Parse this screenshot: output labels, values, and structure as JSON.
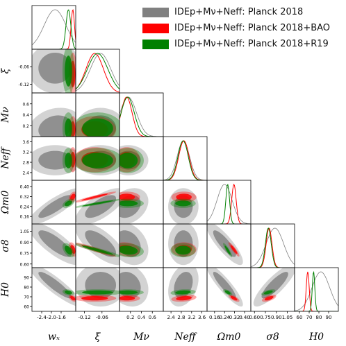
{
  "legend": [
    {
      "label": "IDEp+Mν+Neff: Planck 2018",
      "color": "#808080"
    },
    {
      "label": "IDEp+Mν+Neff: Planck 2018+BAO",
      "color": "#ff0000"
    },
    {
      "label": "IDEp+Mν+Neff: Planck 2018+R19",
      "color": "#008000"
    }
  ],
  "chart_data": {
    "type": "scatter",
    "subtype": "triangle-corner-plot",
    "parameters": [
      {
        "key": "wx",
        "label": "wₓ",
        "range": [
          -2.8,
          -1.0
        ],
        "ticks": [
          "-2.4",
          "-2.0",
          "-1.6"
        ],
        "tick_values": [
          -2.4,
          -2.0,
          -1.6
        ]
      },
      {
        "key": "xi",
        "label": "ξ",
        "range": [
          -0.15,
          0.0
        ],
        "ticks": [
          "-0.12",
          "-0.06"
        ],
        "tick_values": [
          -0.12,
          -0.06
        ]
      },
      {
        "key": "mnu",
        "label": "Mν",
        "range": [
          0.0,
          0.8
        ],
        "ticks": [
          "0.2",
          "0.4",
          "0.6"
        ],
        "tick_values": [
          0.2,
          0.4,
          0.6
        ]
      },
      {
        "key": "neff",
        "label": "Neff",
        "range": [
          2.1,
          3.8
        ],
        "ticks": [
          "2.4",
          "2.8",
          "3.2",
          "3.6"
        ],
        "tick_values": [
          2.4,
          2.8,
          3.2,
          3.6
        ]
      },
      {
        "key": "om",
        "label": "Ωm0",
        "range": [
          0.1,
          0.45
        ],
        "ticks": [
          "0.16",
          "0.24",
          "0.32",
          "0.40"
        ],
        "tick_values": [
          0.16,
          0.24,
          0.32,
          0.4
        ]
      },
      {
        "key": "s8",
        "label": "σ8",
        "range": [
          0.55,
          1.15
        ],
        "ticks": [
          "0.60",
          "0.75",
          "0.90",
          "1.05"
        ],
        "tick_values": [
          0.6,
          0.75,
          0.9,
          1.05
        ]
      },
      {
        "key": "h0",
        "label": "H0",
        "range": [
          55,
          100
        ],
        "ticks": [
          "60",
          "70",
          "80",
          "90"
        ],
        "tick_values": [
          60,
          70,
          80,
          90
        ]
      }
    ],
    "y_ticks": {
      "xi": [
        "-0.06",
        "-0.12"
      ],
      "mnu": [
        "0.6",
        "0.4",
        "0.2"
      ],
      "neff": [
        "3.6",
        "3.2",
        "2.8",
        "2.4"
      ],
      "om": [
        "0.40",
        "0.32",
        "0.24",
        "0.16"
      ],
      "s8": [
        "1.05",
        "0.90",
        "0.75",
        "0.60"
      ],
      "h0": [
        "90",
        "80",
        "70",
        "60"
      ]
    },
    "datasets": [
      {
        "name": "IDEp+Mν+Neff: Planck 2018",
        "color": "#808080",
        "means": {
          "wx": -1.85,
          "xi": -0.065,
          "mnu": 0.16,
          "neff": 2.88,
          "om": 0.24,
          "s8": 0.88,
          "h0": 82
        },
        "sigmas": {
          "wx": 0.45,
          "xi": 0.035,
          "mnu": 0.15,
          "neff": 0.24,
          "om": 0.06,
          "s8": 0.12,
          "h0": 9
        },
        "corr": {
          "wx|xi": 0.0,
          "wx|mnu": 0.2,
          "wx|neff": 0.0,
          "wx|om": 0.85,
          "wx|s8": -0.8,
          "wx|h0": -0.9,
          "xi|mnu": 0.0,
          "xi|neff": 0.0,
          "xi|om": 0.7,
          "xi|s8": -0.7,
          "xi|h0": 0.0,
          "mnu|neff": 0.0,
          "mnu|om": 0.3,
          "mnu|s8": -0.3,
          "mnu|h0": -0.2,
          "neff|om": 0.0,
          "neff|s8": 0.0,
          "neff|h0": 0.3,
          "om|s8": -0.85,
          "om|h0": -0.9,
          "s8|h0": 0.85
        }
      },
      {
        "name": "IDEp+Mν+Neff: Planck 2018+BAO",
        "color": "#ff0000",
        "means": {
          "wx": -1.12,
          "xi": -0.085,
          "mnu": 0.13,
          "neff": 2.9,
          "om": 0.315,
          "s8": 0.8,
          "h0": 68.5
        },
        "sigmas": {
          "wx": 0.07,
          "xi": 0.03,
          "mnu": 0.1,
          "neff": 0.2,
          "om": 0.018,
          "s8": 0.04,
          "h0": 1.5
        },
        "corr": {
          "wx|xi": 0.0,
          "wx|mnu": 0.0,
          "wx|neff": 0.0,
          "wx|om": 0.4,
          "wx|s8": -0.4,
          "wx|h0": -0.5,
          "xi|mnu": 0.0,
          "xi|neff": 0.0,
          "xi|om": 0.95,
          "xi|s8": -0.95,
          "xi|h0": 0.0,
          "mnu|neff": 0.0,
          "mnu|om": 0.0,
          "mnu|s8": -0.2,
          "mnu|h0": 0.0,
          "neff|om": 0.0,
          "neff|s8": 0.0,
          "neff|h0": 0.3,
          "om|s8": -0.9,
          "om|h0": -0.7,
          "s8|h0": 0.6
        }
      },
      {
        "name": "IDEp+Mν+Neff: Planck 2018+R19",
        "color": "#008000",
        "means": {
          "wx": -1.3,
          "xi": -0.075,
          "mnu": 0.15,
          "neff": 2.87,
          "om": 0.265,
          "s8": 0.79,
          "h0": 74.5
        },
        "sigmas": {
          "wx": 0.1,
          "xi": 0.035,
          "mnu": 0.12,
          "neff": 0.2,
          "om": 0.015,
          "s8": 0.04,
          "h0": 1.3
        },
        "corr": {
          "wx|xi": 0.0,
          "wx|mnu": 0.0,
          "wx|neff": 0.0,
          "wx|om": 0.5,
          "wx|s8": -0.5,
          "wx|h0": -0.3,
          "xi|mnu": 0.0,
          "xi|neff": 0.0,
          "xi|om": 0.95,
          "xi|s8": -0.95,
          "xi|h0": 0.0,
          "mnu|neff": 0.0,
          "mnu|om": 0.0,
          "mnu|s8": -0.2,
          "mnu|h0": 0.0,
          "neff|om": 0.0,
          "neff|s8": 0.0,
          "neff|h0": 0.2,
          "om|s8": -0.9,
          "om|h0": -0.6,
          "s8|h0": 0.6
        }
      }
    ],
    "grid": false
  }
}
